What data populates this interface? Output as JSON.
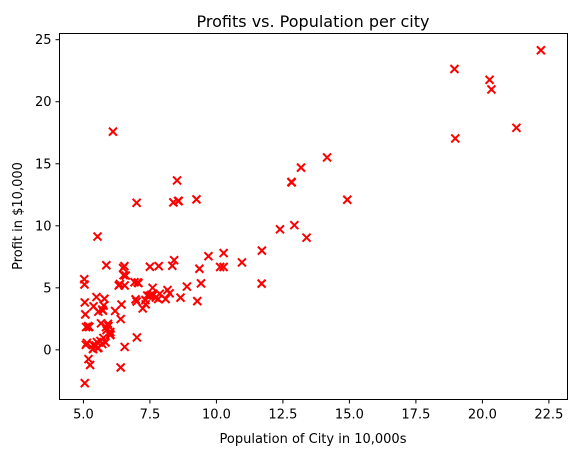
{
  "chart_data": {
    "type": "scatter",
    "title": "Profits vs. Population per city",
    "xlabel": "Population of City in 10,000s",
    "ylabel": "Profit in $10,000",
    "xlim": [
      4.1,
      23.2
    ],
    "ylim": [
      -4.0,
      25.5
    ],
    "xticks": [
      5.0,
      7.5,
      10.0,
      12.5,
      15.0,
      17.5,
      20.0,
      22.5
    ],
    "xtick_labels": [
      "5.0",
      "7.5",
      "10.0",
      "12.5",
      "15.0",
      "17.5",
      "20.0",
      "22.5"
    ],
    "yticks": [
      0,
      5,
      10,
      15,
      20,
      25
    ],
    "ytick_labels": [
      "0",
      "5",
      "10",
      "15",
      "20",
      "25"
    ],
    "grid": false,
    "marker": "x",
    "marker_color": "#ff0000",
    "points": [
      [
        6.11,
        17.59
      ],
      [
        5.53,
        9.13
      ],
      [
        8.52,
        13.66
      ],
      [
        7.0,
        11.85
      ],
      [
        5.86,
        6.82
      ],
      [
        8.38,
        11.89
      ],
      [
        7.48,
        4.35
      ],
      [
        8.58,
        12.0
      ],
      [
        6.49,
        6.6
      ],
      [
        5.05,
        3.82
      ],
      [
        5.71,
        3.25
      ],
      [
        14.16,
        15.51
      ],
      [
        5.73,
        3.16
      ],
      [
        8.41,
        7.23
      ],
      [
        5.64,
        0.72
      ],
      [
        5.38,
        3.51
      ],
      [
        6.37,
        5.3
      ],
      [
        5.13,
        0.56
      ],
      [
        6.43,
        3.65
      ],
      [
        7.07,
        5.39
      ],
      [
        6.19,
        3.14
      ],
      [
        20.27,
        21.77
      ],
      [
        5.49,
        4.26
      ],
      [
        6.33,
        5.19
      ],
      [
        5.56,
        3.08
      ],
      [
        18.95,
        22.64
      ],
      [
        12.83,
        13.5
      ],
      [
        10.96,
        7.05
      ],
      [
        13.18,
        14.69
      ],
      [
        22.2,
        24.15
      ],
      [
        5.25,
        -1.22
      ],
      [
        6.59,
        5.99
      ],
      [
        9.25,
        12.13
      ],
      [
        5.19,
        1.85
      ],
      [
        9.36,
        6.54
      ],
      [
        8.24,
        4.56
      ],
      [
        5.79,
        4.12
      ],
      [
        12.39,
        9.72
      ],
      [
        11.71,
        8.0
      ],
      [
        7.87,
        4.52
      ],
      [
        5.36,
        0.07
      ],
      [
        8.34,
        6.78
      ],
      [
        5.66,
        2.14
      ],
      [
        5.76,
        3.57
      ],
      [
        6.55,
        5.19
      ],
      [
        5.85,
        1.83
      ],
      [
        5.46,
        0.36
      ],
      [
        6.01,
        1.26
      ],
      [
        5.51,
        0.63
      ],
      [
        7.6,
        5.0
      ],
      [
        5.92,
        2.1
      ],
      [
        5.19,
        -0.74
      ],
      [
        13.39,
        9.04
      ],
      [
        6.96,
        4.07
      ],
      [
        5.94,
        1.93
      ],
      [
        6.4,
        -1.42
      ],
      [
        5.18,
        1.92
      ],
      [
        6.55,
        0.24
      ],
      [
        9.28,
        3.93
      ],
      [
        7.01,
        1.0
      ],
      [
        8.56,
        12.0
      ],
      [
        8.09,
        4.1
      ],
      [
        21.28,
        17.9
      ],
      [
        5.09,
        0.41
      ],
      [
        6.92,
        5.45
      ],
      [
        5.37,
        0.39
      ],
      [
        5.36,
        0.07
      ],
      [
        12.82,
        13.53
      ],
      [
        7.62,
        4.41
      ],
      [
        5.05,
        -2.68
      ],
      [
        20.34,
        20.99
      ],
      [
        10.14,
        6.68
      ],
      [
        7.33,
        4.02
      ],
      [
        6.01,
        1.44
      ],
      [
        7.23,
        3.34
      ],
      [
        5.03,
        5.7
      ],
      [
        6.54,
        6.75
      ],
      [
        7.54,
        4.43
      ],
      [
        5.04,
        5.27
      ],
      [
        10.27,
        6.68
      ],
      [
        5.1,
        1.84
      ],
      [
        5.75,
        0.96
      ],
      [
        5.53,
        0.15
      ],
      [
        6.51,
        6.02
      ],
      [
        5.83,
        0.6
      ],
      [
        6.01,
        1.19
      ],
      [
        5.87,
        1.6
      ],
      [
        8.89,
        5.1
      ],
      [
        5.71,
        0.47
      ],
      [
        9.42,
        5.36
      ],
      [
        7.04,
        5.43
      ],
      [
        7.34,
        3.67
      ],
      [
        7.81,
        4.1
      ],
      [
        7.72,
        4.22
      ],
      [
        9.7,
        7.55
      ],
      [
        5.07,
        2.86
      ],
      [
        11.7,
        5.34
      ],
      [
        18.98,
        17.04
      ],
      [
        14.92,
        12.1
      ],
      [
        8.65,
        4.21
      ],
      [
        5.56,
        0.16
      ],
      [
        7.0,
        3.9
      ],
      [
        6.4,
        2.48
      ],
      [
        7.5,
        6.7
      ],
      [
        7.83,
        6.75
      ],
      [
        5.22,
        1.85
      ],
      [
        8.16,
        4.82
      ],
      [
        10.27,
        7.8
      ],
      [
        7.4,
        4.38
      ],
      [
        12.93,
        10.05
      ]
    ]
  }
}
